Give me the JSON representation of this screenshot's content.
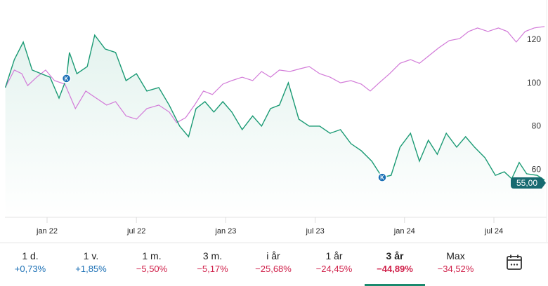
{
  "colors": {
    "primary": "#1a9a74",
    "compare": "#d27ad8",
    "positive": "#1a6fb5",
    "negative": "#d0204a",
    "price_tag": "#176a70"
  },
  "chart_data": {
    "type": "line",
    "x_unit": "months since jan 22",
    "xlim": [
      -2.8,
      33.4
    ],
    "ylim": [
      50,
      130
    ],
    "y_ticks": [
      60,
      80,
      100,
      120
    ],
    "x_ticks": [
      {
        "t": 0,
        "label": "jan 22"
      },
      {
        "t": 6,
        "label": "jul 22"
      },
      {
        "t": 12,
        "label": "jan 23"
      },
      {
        "t": 18,
        "label": "jul 23"
      },
      {
        "t": 24,
        "label": "jan 24"
      },
      {
        "t": 30,
        "label": "jul 24"
      }
    ],
    "series": [
      {
        "name": "primary",
        "x": [
          -2.8,
          -2.2,
          -1.6,
          -1.0,
          -0.4,
          0.2,
          0.8,
          1.3,
          1.5,
          2.0,
          2.7,
          3.2,
          3.9,
          4.6,
          5.3,
          6.0,
          6.7,
          7.5,
          8.2,
          8.9,
          9.5,
          10.0,
          10.6,
          11.2,
          11.8,
          12.4,
          13.1,
          13.8,
          14.4,
          15.0,
          15.6,
          16.2,
          16.9,
          17.6,
          18.3,
          19.0,
          19.7,
          20.4,
          21.1,
          21.8,
          22.5,
          23.1,
          23.7,
          24.4,
          25.0,
          25.6,
          26.2,
          26.8,
          27.5,
          28.1,
          28.7,
          29.4,
          30.1,
          30.7,
          31.2,
          31.7,
          32.2,
          32.9,
          33.4
        ],
        "values": [
          97.7,
          110.6,
          118.7,
          105.8,
          104.1,
          102.5,
          92.8,
          101.9,
          113.9,
          104.1,
          107.4,
          121.9,
          115.5,
          113.9,
          100.9,
          104.1,
          96.1,
          97.7,
          89.6,
          79.9,
          75.0,
          88.0,
          91.2,
          86.4,
          91.2,
          86.4,
          78.3,
          84.6,
          79.9,
          88.0,
          89.6,
          99.9,
          83.1,
          79.9,
          79.9,
          76.6,
          78.3,
          71.8,
          68.5,
          63.7,
          56.2,
          57.2,
          70.2,
          76.6,
          63.7,
          73.4,
          66.9,
          76.6,
          70.2,
          75.0,
          70.2,
          65.3,
          57.2,
          58.8,
          55.6,
          63.1,
          57.9,
          57.2,
          55.0
        ]
      },
      {
        "name": "compare",
        "x": [
          -2.8,
          -2.2,
          -1.7,
          -1.3,
          -0.7,
          -0.1,
          0.5,
          1.2,
          1.9,
          2.6,
          3.3,
          4.0,
          4.6,
          5.3,
          6.0,
          6.7,
          7.5,
          8.2,
          8.7,
          9.3,
          9.9,
          10.5,
          11.1,
          11.8,
          12.4,
          13.1,
          13.8,
          14.4,
          15.0,
          15.6,
          16.3,
          17.0,
          17.6,
          18.3,
          19.0,
          19.7,
          20.4,
          21.1,
          21.7,
          22.3,
          23.0,
          23.7,
          24.4,
          25.0,
          25.6,
          26.3,
          27.0,
          27.7,
          28.3,
          28.9,
          29.6,
          30.3,
          30.9,
          31.5,
          32.1,
          32.7,
          33.4
        ],
        "values": [
          97.7,
          105.8,
          104.1,
          98.6,
          102.5,
          105.8,
          100.9,
          99.3,
          88.0,
          96.1,
          92.8,
          89.6,
          91.2,
          84.6,
          83.1,
          88.0,
          89.6,
          86.4,
          81.5,
          83.8,
          89.6,
          96.1,
          94.5,
          99.3,
          100.9,
          102.5,
          100.9,
          105.1,
          102.5,
          105.8,
          105.1,
          106.4,
          107.4,
          104.1,
          102.5,
          99.9,
          100.9,
          99.3,
          96.1,
          99.9,
          104.1,
          108.9,
          110.6,
          108.9,
          112.2,
          116.1,
          119.4,
          120.3,
          123.6,
          125.2,
          123.6,
          125.2,
          123.6,
          118.7,
          123.6,
          125.2,
          125.9
        ]
      }
    ],
    "markers": [
      {
        "series": "primary",
        "t": 1.3,
        "value": 101.9,
        "label": "K"
      },
      {
        "series": "primary",
        "t": 22.5,
        "value": 56.2,
        "label": "K"
      }
    ],
    "last_price_label": "55,00"
  },
  "periods": [
    {
      "label": "1 d.",
      "change": "+0,73%",
      "dir": "pos"
    },
    {
      "label": "1 v.",
      "change": "+1,85%",
      "dir": "pos"
    },
    {
      "label": "1 m.",
      "change": "−5,50%",
      "dir": "neg"
    },
    {
      "label": "3 m.",
      "change": "−5,17%",
      "dir": "neg"
    },
    {
      "label": "i år",
      "change": "−25,68%",
      "dir": "neg"
    },
    {
      "label": "1 år",
      "change": "−24,45%",
      "dir": "neg"
    },
    {
      "label": "3 år",
      "change": "−44,89%",
      "dir": "neg",
      "selected": true
    },
    {
      "label": "Max",
      "change": "−34,52%",
      "dir": "neg"
    }
  ],
  "calendar_icon": "calendar-icon"
}
